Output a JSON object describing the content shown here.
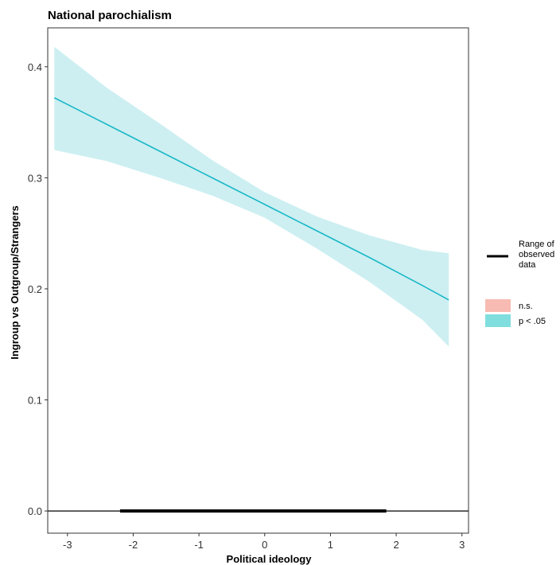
{
  "chart_data": {
    "type": "line",
    "title": "National parochialism",
    "xlabel": "Political ideology",
    "ylabel": "Ingroup vs Outgroup/Strangers",
    "xlim": [
      -3.3,
      3.1
    ],
    "ylim": [
      -0.02,
      0.435
    ],
    "x_ticks": [
      -3,
      -2,
      -1,
      0,
      1,
      2,
      3
    ],
    "y_ticks": [
      0.0,
      0.1,
      0.2,
      0.3,
      0.4
    ],
    "x_tick_labels": [
      "-3",
      "-2",
      "-1",
      "0",
      "1",
      "2",
      "3"
    ],
    "y_tick_labels": [
      "0.0",
      "0.1",
      "0.2",
      "0.3",
      "0.4"
    ],
    "grid": false,
    "legend_position": "right",
    "reference_line_y": 0.0,
    "observed_range": [
      -2.2,
      1.85
    ],
    "series": [
      {
        "x": [
          -3.2,
          -2.4,
          -1.6,
          -0.8,
          0.0,
          0.8,
          1.6,
          2.4,
          2.8
        ],
        "estimate": [
          0.372,
          0.348,
          0.324,
          0.3,
          0.276,
          0.252,
          0.228,
          0.203,
          0.19
        ],
        "ci_upper": [
          0.418,
          0.381,
          0.349,
          0.316,
          0.287,
          0.265,
          0.248,
          0.235,
          0.232
        ],
        "ci_lower": [
          0.325,
          0.315,
          0.3,
          0.284,
          0.264,
          0.236,
          0.206,
          0.172,
          0.148
        ]
      }
    ],
    "legend": {
      "line_label": "Range of\nobserved\ndata",
      "items": [
        {
          "label": "n.s.",
          "color": "#f8bbb3"
        },
        {
          "label": "p < .05",
          "color": "#80dedf"
        }
      ]
    },
    "colors": {
      "line": "#1ab8c6",
      "ribbon": "#cdeff2",
      "observed_bar": "#000000"
    }
  }
}
